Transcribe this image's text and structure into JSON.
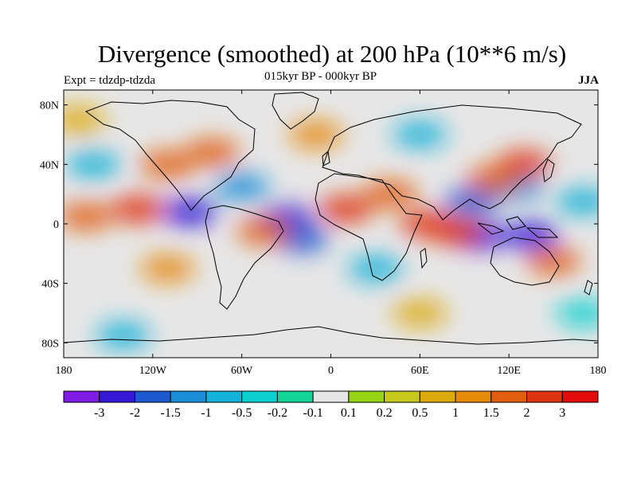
{
  "chart_data": {
    "type": "heatmap",
    "title": "Divergence (smoothed) at 200 hPa (10**6 m/s)",
    "subtitle": "015kyr BP - 000kyr BP",
    "left_label": "Expt = tdzdp-tdzda",
    "right_label": "JJA",
    "x_ticks": [
      {
        "value": -180,
        "label": "180"
      },
      {
        "value": -120,
        "label": "120W"
      },
      {
        "value": -60,
        "label": "60W"
      },
      {
        "value": 0,
        "label": "0"
      },
      {
        "value": 60,
        "label": "60E"
      },
      {
        "value": 120,
        "label": "120E"
      },
      {
        "value": 180,
        "label": "180"
      }
    ],
    "y_ticks": [
      {
        "value": 80,
        "label": "80N"
      },
      {
        "value": 40,
        "label": "40N"
      },
      {
        "value": 0,
        "label": "0"
      },
      {
        "value": -40,
        "label": "40S"
      },
      {
        "value": -80,
        "label": "80S"
      }
    ],
    "xlim": [
      -180,
      180
    ],
    "ylim": [
      -90,
      90
    ],
    "colorbar": {
      "labels": [
        "-3",
        "-2",
        "-1.5",
        "-1",
        "-0.5",
        "-0.2",
        "-0.1",
        "0.1",
        "0.2",
        "0.5",
        "1",
        "1.5",
        "2",
        "3"
      ],
      "colors": [
        "#7e1ce6",
        "#3418d6",
        "#1c58d0",
        "#1a8ed8",
        "#14b2d8",
        "#0cd0d0",
        "#12d496",
        "#e6e6e6",
        "#96d414",
        "#c8c81a",
        "#dcaa0a",
        "#e68a0a",
        "#e25e0e",
        "#de3410",
        "#e20a0a"
      ]
    },
    "field_features": [
      {
        "lon": -95,
        "lat": 8,
        "value": -2.5
      },
      {
        "lon": -30,
        "lat": 3,
        "value": -3.0
      },
      {
        "lon": -20,
        "lat": -10,
        "value": -2.0
      },
      {
        "lon": 100,
        "lat": -8,
        "value": -3.0
      },
      {
        "lon": 135,
        "lat": -8,
        "value": -2.5
      },
      {
        "lon": 95,
        "lat": 15,
        "value": -2.0
      },
      {
        "lon": 125,
        "lat": 25,
        "value": -1.5
      },
      {
        "lon": -130,
        "lat": 10,
        "value": 2.0
      },
      {
        "lon": -165,
        "lat": 5,
        "value": 1.5
      },
      {
        "lon": -45,
        "lat": -5,
        "value": 1.5
      },
      {
        "lon": 10,
        "lat": 10,
        "value": 2.0
      },
      {
        "lon": 65,
        "lat": 0,
        "value": 2.5
      },
      {
        "lon": 85,
        "lat": -5,
        "value": 2.0
      },
      {
        "lon": 40,
        "lat": 20,
        "value": 1.5
      },
      {
        "lon": 130,
        "lat": 40,
        "value": 2.0
      },
      {
        "lon": 110,
        "lat": 30,
        "value": 1.5
      },
      {
        "lon": -80,
        "lat": 48,
        "value": 1.5
      },
      {
        "lon": -110,
        "lat": 40,
        "value": 1.5
      },
      {
        "lon": 150,
        "lat": -25,
        "value": 1.5
      },
      {
        "lon": -110,
        "lat": -30,
        "value": 1.0
      },
      {
        "lon": -10,
        "lat": 60,
        "value": 1.0
      },
      {
        "lon": 60,
        "lat": 60,
        "value": -1.0
      },
      {
        "lon": -160,
        "lat": 40,
        "value": -1.0
      },
      {
        "lon": -60,
        "lat": 25,
        "value": -1.5
      },
      {
        "lon": 30,
        "lat": -30,
        "value": -1.0
      },
      {
        "lon": 170,
        "lat": 15,
        "value": -1.0
      },
      {
        "lon": -140,
        "lat": -75,
        "value": -0.8
      },
      {
        "lon": 60,
        "lat": -60,
        "value": 0.5
      },
      {
        "lon": -170,
        "lat": 70,
        "value": 0.6
      },
      {
        "lon": 170,
        "lat": -60,
        "value": -0.5
      }
    ]
  }
}
